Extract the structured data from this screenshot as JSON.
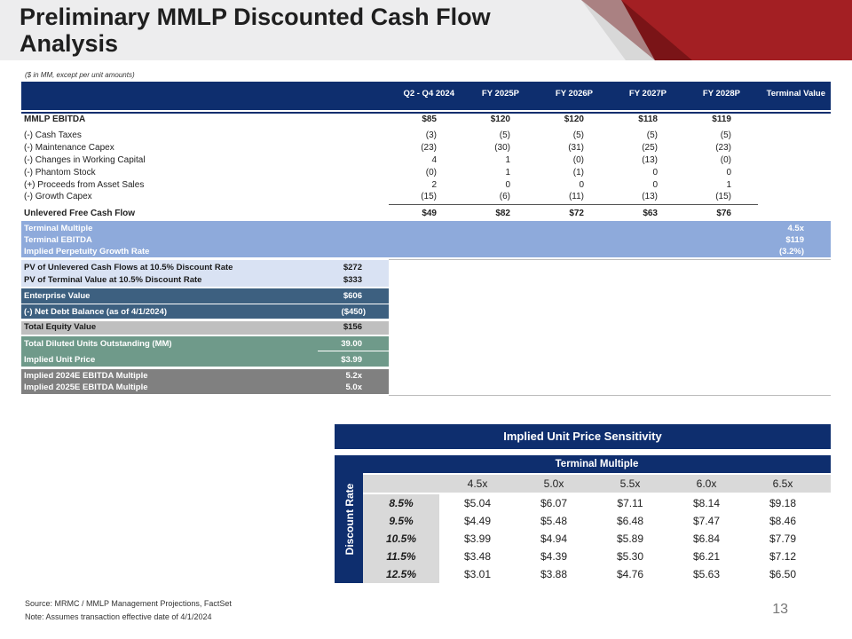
{
  "header": {
    "title_line1": "Preliminary MMLP Discounted Cash Flow",
    "title_line2": "Analysis",
    "units_note": "($ in MM, except per unit amounts)",
    "accent_color": "#a31f23",
    "navy_color": "#0e2e6e"
  },
  "columns": [
    "Q2 - Q4 2024",
    "FY 2025P",
    "FY 2026P",
    "FY 2027P",
    "FY 2028P",
    "Terminal Value"
  ],
  "ebitda": {
    "label": "MMLP EBITDA",
    "values": [
      "$85",
      "$120",
      "$120",
      "$118",
      "$119"
    ]
  },
  "adjustments": [
    {
      "label": "(-) Cash Taxes",
      "values": [
        "(3)",
        "(5)",
        "(5)",
        "(5)",
        "(5)"
      ]
    },
    {
      "label": "(-) Maintenance Capex",
      "values": [
        "(23)",
        "(30)",
        "(31)",
        "(25)",
        "(23)"
      ]
    },
    {
      "label": "(-) Changes in Working Capital",
      "values": [
        "4",
        "1",
        "(0)",
        "(13)",
        "(0)"
      ]
    },
    {
      "label": "(-) Phantom Stock",
      "values": [
        "(0)",
        "1",
        "(1)",
        "0",
        "0"
      ]
    },
    {
      "label": "(+) Proceeds from Asset Sales",
      "values": [
        "2",
        "0",
        "0",
        "0",
        "1"
      ]
    },
    {
      "label": "(-) Growth Capex",
      "values": [
        "(15)",
        "(6)",
        "(11)",
        "(13)",
        "(15)"
      ]
    }
  ],
  "ufcf": {
    "label": "Unlevered Free Cash Flow",
    "values": [
      "$49",
      "$82",
      "$72",
      "$63",
      "$76"
    ]
  },
  "terminal": [
    {
      "label": "Terminal Multiple",
      "value": "4.5x"
    },
    {
      "label": "Terminal EBITDA",
      "value": "$119"
    },
    {
      "label": "Implied Perpetuity Growth Rate",
      "value": "(3.2%)"
    }
  ],
  "valuation": {
    "pv_ufcf": {
      "label": "PV of Unlevered Cash Flows at 10.5% Discount Rate",
      "value": "$272"
    },
    "pv_tv": {
      "label": "PV of Terminal Value at 10.5% Discount Rate",
      "value": "$333"
    },
    "ev": {
      "label": "Enterprise Value",
      "value": "$606"
    },
    "net_debt": {
      "label": "(-) Net Debt Balance (as of 4/1/2024)",
      "value": "($450)"
    },
    "equity": {
      "label": "Total Equity Value",
      "value": "$156"
    },
    "units": {
      "label": "Total Diluted Units Outstanding (MM)",
      "value": "39.00"
    },
    "unit_price": {
      "label": "Implied Unit Price",
      "value": "$3.99"
    },
    "mult_2024": {
      "label": "Implied 2024E EBITDA Multiple",
      "value": "5.2x"
    },
    "mult_2025": {
      "label": "Implied 2025E EBITDA Multiple",
      "value": "5.0x"
    }
  },
  "sensitivity": {
    "title": "Implied Unit Price Sensitivity",
    "col_axis": "Terminal Multiple",
    "row_axis": "Discount Rate",
    "col_headers": [
      "4.5x",
      "5.0x",
      "5.5x",
      "6.0x",
      "6.5x"
    ],
    "rows": [
      {
        "rate": "8.5%",
        "values": [
          "$5.04",
          "$6.07",
          "$7.11",
          "$8.14",
          "$9.18"
        ]
      },
      {
        "rate": "9.5%",
        "values": [
          "$4.49",
          "$5.48",
          "$6.48",
          "$7.47",
          "$8.46"
        ]
      },
      {
        "rate": "10.5%",
        "values": [
          "$3.99",
          "$4.94",
          "$5.89",
          "$6.84",
          "$7.79"
        ]
      },
      {
        "rate": "11.5%",
        "values": [
          "$3.48",
          "$4.39",
          "$5.30",
          "$6.21",
          "$7.12"
        ]
      },
      {
        "rate": "12.5%",
        "values": [
          "$3.01",
          "$3.88",
          "$4.76",
          "$5.63",
          "$6.50"
        ]
      }
    ]
  },
  "footer": {
    "source": "Source: MRMC / MMLP Management Projections, FactSet",
    "note": "Note: Assumes transaction effective date of 4/1/2024",
    "page": "13"
  }
}
